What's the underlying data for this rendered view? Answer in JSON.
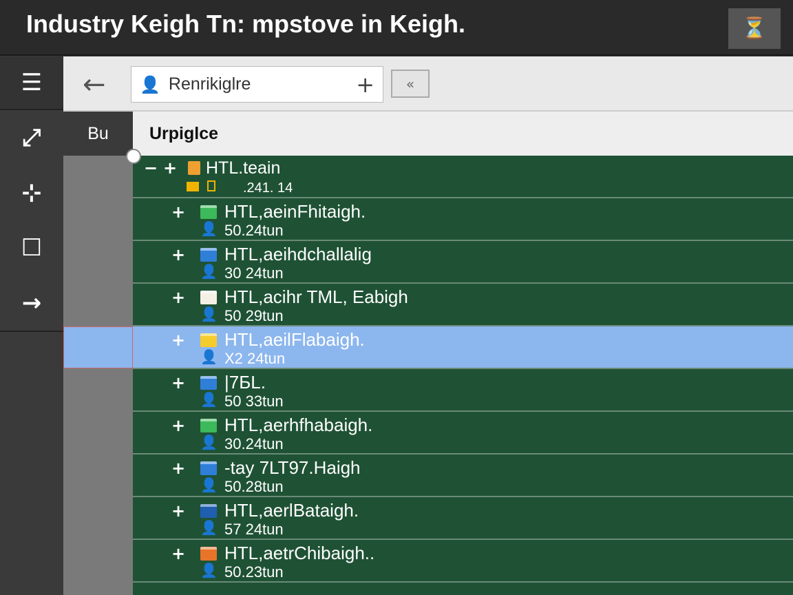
{
  "window": {
    "title": "Industry Keigh Tn: mpstove in Keigh.",
    "action_icon": "filter-glass-icon"
  },
  "sidebar": {
    "items": [
      {
        "icon": "menu-icon",
        "glyph": "☰"
      },
      {
        "icon": "resize-icon",
        "glyph": "⤢"
      },
      {
        "icon": "tool-icon",
        "glyph": "⊹"
      },
      {
        "icon": "square-icon",
        "glyph": "☐"
      },
      {
        "icon": "arrow-right-icon",
        "glyph": "→"
      }
    ]
  },
  "toolbar": {
    "address_value": "Renrikiglre",
    "add_glyph": "+",
    "close_glyph": "«"
  },
  "columns": {
    "left_header": "Bu",
    "main_header": "Urpiglce"
  },
  "tree": {
    "root": {
      "name": "HTL.teain",
      "size": ".241. 14",
      "expand": "−",
      "plus": "+",
      "icon_color": "#f0a030"
    },
    "items": [
      {
        "name": "HTL,aeinFhitaigh.",
        "size": "50.24tun",
        "icon_color": "#3cb95a",
        "person_color": "#ffffff"
      },
      {
        "name": "HTL,aeihdchallalig",
        "size": "30 24tun",
        "icon_color": "#2f7fd8",
        "person_color": "#ffffff"
      },
      {
        "name": "HTL,acihr TML, Eabigh",
        "size": "50 29tun",
        "icon_color": "#f5f0e6",
        "person_color": "#ffffff"
      },
      {
        "name": "HTL,aeilFlabaigh.",
        "size": "X2 24tun",
        "icon_color": "#f4cc2c",
        "person_color": "#ffffff",
        "selected": true
      },
      {
        "name": "|7БL.",
        "size": "50 33tun",
        "icon_color": "#2f7fd8",
        "person_color": "#e8742a"
      },
      {
        "name": "HTL,aerhfhabaigh.",
        "size": "30.24tun",
        "icon_color": "#3cb95a",
        "person_color": "#f0b400"
      },
      {
        "name": "-tay 7LT97.Haigh",
        "size": "50.28tun",
        "icon_color": "#2f7fd8",
        "person_color": "#ffffff"
      },
      {
        "name": "HTL,aerlBataigh.",
        "size": "57 24tun",
        "icon_color": "#1f5fb0",
        "person_color": "#ffffff"
      },
      {
        "name": "HTL,aetrChibaigh..",
        "size": "50.23tun",
        "icon_color": "#e8742a",
        "person_color": "#e8742a"
      }
    ]
  },
  "colors": {
    "tree_bg": "#1f5235",
    "selection": "#8cb6ee"
  }
}
